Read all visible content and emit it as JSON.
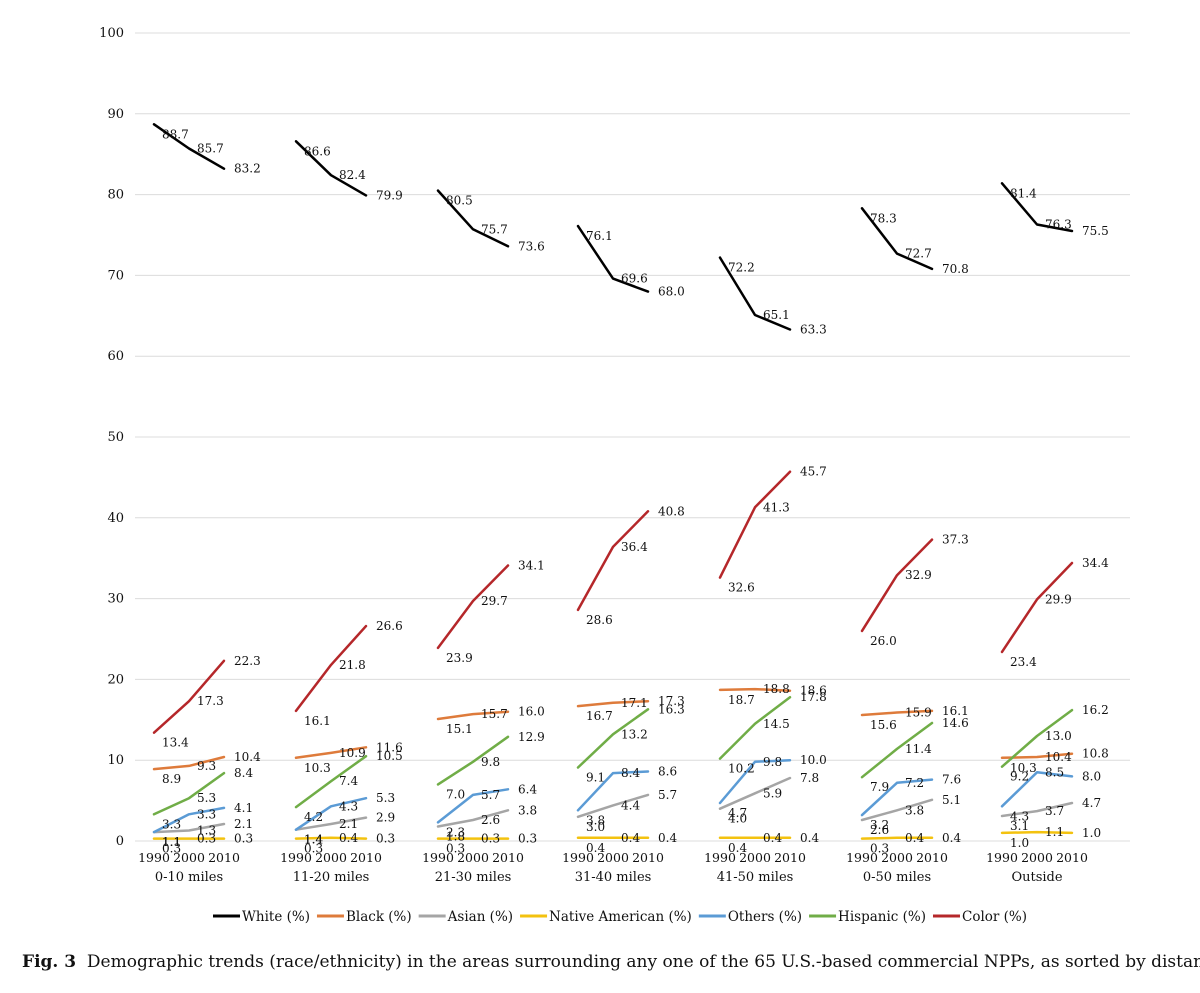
{
  "caption": {
    "label": "Fig. 3",
    "text": "Demographic trends (race/ethnicity) in the areas surrounding any one of the 65 U.S.-based commercial NPPs, as sorted by distance"
  },
  "chart_data": {
    "type": "line",
    "title": "",
    "xlabel": "",
    "ylabel": "",
    "ylim": [
      0,
      100
    ],
    "yticks": [
      0,
      10,
      20,
      30,
      40,
      50,
      60,
      70,
      80,
      90,
      100
    ],
    "grid": true,
    "legend_position": "bottom",
    "years": [
      "1990",
      "2000",
      "2010"
    ],
    "groups": [
      "0-10 miles",
      "11-20 miles",
      "21-30 miles",
      "31-40 miles",
      "41-50 miles",
      "0-50 miles",
      "Outside"
    ],
    "series": [
      {
        "name": "White (%)",
        "color": "#000000",
        "values": [
          [
            88.7,
            85.7,
            83.2
          ],
          [
            86.6,
            82.4,
            79.9
          ],
          [
            80.5,
            75.7,
            73.6
          ],
          [
            76.1,
            69.6,
            68.0
          ],
          [
            72.2,
            65.1,
            63.3
          ],
          [
            78.3,
            72.7,
            70.8
          ],
          [
            81.4,
            76.3,
            75.5
          ]
        ]
      },
      {
        "name": "Black (%)",
        "color": "#de7b3b",
        "values": [
          [
            8.9,
            9.3,
            10.4
          ],
          [
            10.3,
            10.9,
            11.6
          ],
          [
            15.1,
            15.7,
            16.0
          ],
          [
            16.7,
            17.1,
            17.3
          ],
          [
            18.7,
            18.8,
            18.6
          ],
          [
            15.6,
            15.9,
            16.1
          ],
          [
            10.3,
            10.4,
            10.8
          ]
        ]
      },
      {
        "name": "Asian (%)",
        "color": "#a5a5a5",
        "values": [
          [
            1.1,
            1.3,
            2.1
          ],
          [
            1.4,
            2.1,
            2.9
          ],
          [
            1.8,
            2.6,
            3.8
          ],
          [
            3.0,
            4.4,
            5.7
          ],
          [
            4.0,
            5.9,
            7.8
          ],
          [
            2.6,
            3.8,
            5.1
          ],
          [
            3.1,
            3.7,
            4.7
          ]
        ]
      },
      {
        "name": "Native American (%)",
        "color": "#f3c20f",
        "values": [
          [
            0.3,
            0.3,
            0.3
          ],
          [
            0.3,
            0.4,
            0.3
          ],
          [
            0.3,
            0.3,
            0.3
          ],
          [
            0.4,
            0.4,
            0.4
          ],
          [
            0.4,
            0.4,
            0.4
          ],
          [
            0.3,
            0.4,
            0.4
          ],
          [
            1.0,
            1.1,
            1.0
          ]
        ]
      },
      {
        "name": "Others (%)",
        "color": "#5b9bd5",
        "values": [
          [
            1.1,
            3.3,
            4.1
          ],
          [
            1.4,
            4.3,
            5.3
          ],
          [
            2.3,
            5.7,
            6.4
          ],
          [
            3.8,
            8.4,
            8.6
          ],
          [
            4.7,
            9.8,
            10.0
          ],
          [
            3.2,
            7.2,
            7.6
          ],
          [
            4.3,
            8.5,
            8.0
          ]
        ]
      },
      {
        "name": "Hispanic (%)",
        "color": "#70ad47",
        "values": [
          [
            3.3,
            5.3,
            8.4
          ],
          [
            4.2,
            7.4,
            10.5
          ],
          [
            7.0,
            9.8,
            12.9
          ],
          [
            9.1,
            13.2,
            16.3
          ],
          [
            10.2,
            14.5,
            17.8
          ],
          [
            7.9,
            11.4,
            14.6
          ],
          [
            9.2,
            13.0,
            16.2
          ]
        ]
      },
      {
        "name": "Color (%)",
        "color": "#b5272a",
        "values": [
          [
            13.4,
            17.3,
            22.3
          ],
          [
            16.1,
            21.8,
            26.6
          ],
          [
            23.9,
            29.7,
            34.1
          ],
          [
            28.6,
            36.4,
            40.8
          ],
          [
            32.6,
            41.3,
            45.7
          ],
          [
            26.0,
            32.9,
            37.3
          ],
          [
            23.4,
            29.9,
            34.4
          ]
        ]
      }
    ]
  }
}
